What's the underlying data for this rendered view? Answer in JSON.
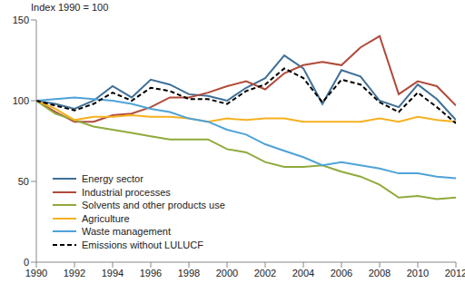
{
  "chart_data": {
    "type": "line",
    "title": "Index 1990 = 100",
    "x": [
      1990,
      1991,
      1992,
      1993,
      1994,
      1995,
      1996,
      1997,
      1998,
      1999,
      2000,
      2001,
      2002,
      2003,
      2004,
      2005,
      2006,
      2007,
      2008,
      2009,
      2010,
      2011,
      2012
    ],
    "xlim": [
      1990,
      2012
    ],
    "xticks": [
      1990,
      1992,
      1994,
      1996,
      1998,
      2000,
      2002,
      2004,
      2006,
      2008,
      2010,
      2012
    ],
    "ylim": [
      0,
      150
    ],
    "yticks": [
      0,
      50,
      100,
      150
    ],
    "grid": false,
    "legend": "lower left",
    "series": [
      {
        "name": "Energy sector",
        "color": "#3f6f96",
        "line_style": "solid",
        "values": [
          100,
          98,
          95,
          100,
          109,
          102,
          113,
          110,
          104,
          103,
          100,
          108,
          114,
          128,
          120,
          98,
          119,
          115,
          100,
          96,
          110,
          101,
          88
        ]
      },
      {
        "name": "Industrial processes",
        "color": "#b04a3a",
        "line_style": "solid",
        "values": [
          100,
          93,
          87,
          87,
          91,
          92,
          96,
          102,
          102,
          105,
          109,
          112,
          107,
          117,
          122,
          124,
          122,
          133,
          140,
          104,
          112,
          109,
          97
        ]
      },
      {
        "name": "Solvents and other products use",
        "color": "#8faa3c",
        "line_style": "solid",
        "values": [
          100,
          92,
          88,
          84,
          82,
          80,
          78,
          76,
          76,
          76,
          70,
          68,
          62,
          59,
          59,
          60,
          56,
          53,
          48,
          40,
          41,
          39,
          40
        ]
      },
      {
        "name": "Agriculture",
        "color": "#f5b120",
        "line_style": "solid",
        "values": [
          100,
          95,
          88,
          90,
          90,
          91,
          90,
          90,
          89,
          87,
          89,
          88,
          89,
          89,
          87,
          87,
          87,
          87,
          89,
          87,
          90,
          88,
          87
        ]
      },
      {
        "name": "Waste management",
        "color": "#4fa3d8",
        "line_style": "solid",
        "values": [
          100,
          101,
          102,
          101,
          100,
          98,
          95,
          93,
          89,
          87,
          82,
          79,
          73,
          69,
          65,
          60,
          62,
          60,
          58,
          55,
          55,
          53,
          52
        ]
      },
      {
        "name": "Emissions without LULUCF",
        "color": "#000000",
        "line_style": "dashed",
        "values": [
          100,
          97,
          94,
          98,
          105,
          100,
          108,
          106,
          101,
          101,
          98,
          106,
          110,
          120,
          114,
          99,
          113,
          110,
          99,
          93,
          105,
          96,
          86
        ]
      }
    ]
  }
}
